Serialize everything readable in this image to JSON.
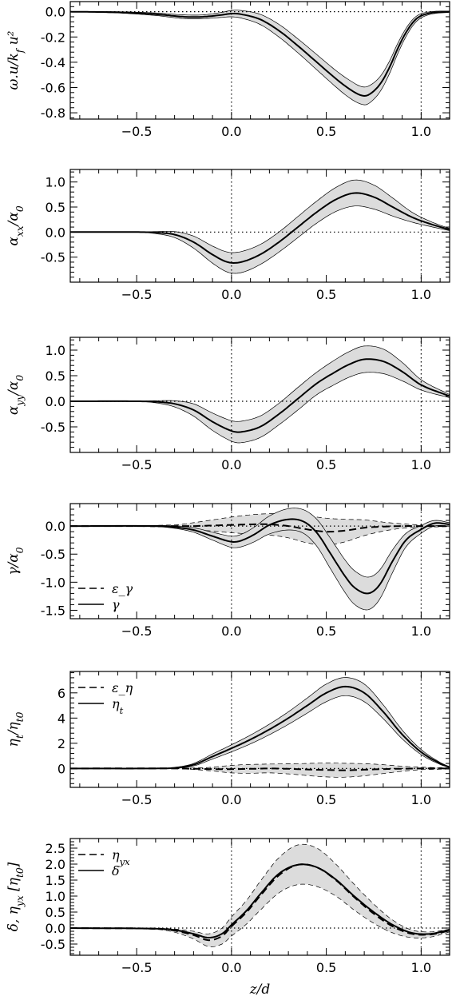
{
  "chart_data": [
    {
      "type": "line",
      "ylabel": "ω.u/k_f u²",
      "xlim": [
        -0.85,
        1.15
      ],
      "ylim": [
        -0.85,
        0.08
      ],
      "yticks": [
        0.0,
        -0.2,
        -0.4,
        -0.6,
        -0.8
      ],
      "ytick_labels": [
        "0.0",
        "-0.2",
        "-0.4",
        "-0.6",
        "-0.8"
      ],
      "xticks": [
        -0.5,
        0.0,
        0.5,
        1.0
      ],
      "xtick_labels": [
        "−0.5",
        "0.0",
        "0.5",
        "1.0"
      ],
      "hline": 0.0,
      "vlines": [
        0.0,
        1.0
      ],
      "legend": [],
      "series": [
        {
          "style": "solid",
          "x": [
            -0.85,
            -0.6,
            -0.4,
            -0.25,
            -0.15,
            -0.05,
            0.0,
            0.05,
            0.15,
            0.25,
            0.35,
            0.45,
            0.55,
            0.62,
            0.68,
            0.72,
            0.78,
            0.83,
            0.88,
            0.93,
            0.98,
            1.05,
            1.15
          ],
          "y": [
            0.0,
            -0.005,
            -0.02,
            -0.04,
            -0.04,
            -0.025,
            -0.015,
            -0.02,
            -0.06,
            -0.15,
            -0.27,
            -0.4,
            -0.53,
            -0.61,
            -0.66,
            -0.66,
            -0.58,
            -0.45,
            -0.28,
            -0.14,
            -0.05,
            -0.01,
            0.0
          ],
          "band": [
            0.0,
            0.005,
            0.01,
            0.015,
            0.015,
            0.02,
            0.025,
            0.03,
            0.04,
            0.05,
            0.055,
            0.06,
            0.065,
            0.07,
            0.07,
            0.07,
            0.06,
            0.05,
            0.04,
            0.03,
            0.02,
            0.01,
            0.005
          ]
        }
      ]
    },
    {
      "type": "line",
      "ylabel": "α_xx/α_0",
      "xlim": [
        -0.85,
        1.15
      ],
      "ylim": [
        -1.0,
        1.25
      ],
      "yticks": [
        1.0,
        0.5,
        0.0,
        -0.5
      ],
      "ytick_labels": [
        "1.0",
        "0.5",
        "0.0",
        "-0.5"
      ],
      "xticks": [
        -0.5,
        0.0,
        0.5,
        1.0
      ],
      "xtick_labels": [
        "−0.5",
        "0.0",
        "0.5",
        "1.0"
      ],
      "hline": 0.0,
      "vlines": [
        0.0,
        1.0
      ],
      "legend": [],
      "series": [
        {
          "style": "solid",
          "x": [
            -0.85,
            -0.5,
            -0.4,
            -0.3,
            -0.2,
            -0.1,
            -0.02,
            0.05,
            0.15,
            0.25,
            0.35,
            0.45,
            0.55,
            0.65,
            0.75,
            0.85,
            0.95,
            1.05,
            1.15
          ],
          "y": [
            0.0,
            0.0,
            -0.01,
            -0.05,
            -0.2,
            -0.45,
            -0.6,
            -0.6,
            -0.45,
            -0.2,
            0.1,
            0.4,
            0.65,
            0.78,
            0.7,
            0.5,
            0.3,
            0.16,
            0.05
          ],
          "band": [
            0.0,
            0.0,
            0.02,
            0.06,
            0.12,
            0.17,
            0.2,
            0.21,
            0.2,
            0.2,
            0.21,
            0.22,
            0.24,
            0.26,
            0.24,
            0.18,
            0.1,
            0.05,
            0.02
          ]
        }
      ]
    },
    {
      "type": "line",
      "ylabel": "α_yy/α_0",
      "xlim": [
        -0.85,
        1.15
      ],
      "ylim": [
        -1.0,
        1.25
      ],
      "yticks": [
        1.0,
        0.5,
        0.0,
        -0.5
      ],
      "ytick_labels": [
        "1.0",
        "0.5",
        "0.0",
        "-0.5"
      ],
      "xticks": [
        -0.5,
        0.0,
        0.5,
        1.0
      ],
      "xtick_labels": [
        "−0.5",
        "0.0",
        "0.5",
        "1.0"
      ],
      "hline": 0.0,
      "vlines": [
        0.0,
        1.0
      ],
      "legend": [],
      "series": [
        {
          "style": "solid",
          "x": [
            -0.85,
            -0.5,
            -0.4,
            -0.3,
            -0.2,
            -0.1,
            0.0,
            0.05,
            0.15,
            0.25,
            0.35,
            0.45,
            0.55,
            0.62,
            0.7,
            0.8,
            0.9,
            1.0,
            1.15
          ],
          "y": [
            0.0,
            0.0,
            -0.01,
            -0.05,
            -0.17,
            -0.4,
            -0.58,
            -0.6,
            -0.5,
            -0.25,
            0.05,
            0.35,
            0.58,
            0.72,
            0.82,
            0.78,
            0.58,
            0.32,
            0.1
          ],
          "band": [
            0.0,
            0.0,
            0.02,
            0.06,
            0.12,
            0.17,
            0.2,
            0.21,
            0.21,
            0.21,
            0.22,
            0.22,
            0.24,
            0.25,
            0.26,
            0.24,
            0.18,
            0.1,
            0.03
          ]
        }
      ]
    },
    {
      "type": "line",
      "ylabel": "γ/α_0",
      "xlim": [
        -0.85,
        1.15
      ],
      "ylim": [
        -1.65,
        0.4
      ],
      "yticks": [
        0.0,
        -0.5,
        -1.0,
        -1.5
      ],
      "ytick_labels": [
        "0.0",
        "-0.5",
        "-1.0",
        "-1.5"
      ],
      "xticks": [
        -0.5,
        0.0,
        0.5,
        1.0
      ],
      "xtick_labels": [
        "−0.5",
        "0.0",
        "0.5",
        "1.0"
      ],
      "hline": 0.0,
      "vlines": [
        0.0,
        1.0
      ],
      "legend": [
        "ε_γ",
        "γ"
      ],
      "series": [
        {
          "style": "dashed",
          "x": [
            -0.85,
            -0.3,
            -0.2,
            -0.1,
            0.0,
            0.1,
            0.2,
            0.3,
            0.4,
            0.5,
            0.6,
            0.7,
            0.8,
            0.9,
            1.0,
            1.15
          ],
          "y": [
            0.0,
            0.0,
            0.0,
            0.01,
            0.02,
            0.03,
            0.03,
            0.0,
            -0.06,
            -0.1,
            -0.08,
            -0.03,
            -0.01,
            0.0,
            0.0,
            0.0
          ],
          "band": [
            0.0,
            0.02,
            0.06,
            0.1,
            0.14,
            0.17,
            0.19,
            0.21,
            0.24,
            0.24,
            0.2,
            0.14,
            0.08,
            0.04,
            0.02,
            0.01
          ]
        },
        {
          "style": "solid",
          "x": [
            -0.85,
            -0.4,
            -0.3,
            -0.2,
            -0.1,
            0.0,
            0.05,
            0.12,
            0.2,
            0.3,
            0.38,
            0.45,
            0.52,
            0.6,
            0.65,
            0.72,
            0.78,
            0.85,
            0.92,
            1.0,
            1.07,
            1.15
          ],
          "y": [
            0.0,
            0.0,
            -0.02,
            -0.07,
            -0.18,
            -0.28,
            -0.26,
            -0.15,
            0.02,
            0.12,
            0.08,
            -0.12,
            -0.48,
            -0.9,
            -1.1,
            -1.2,
            -1.05,
            -0.62,
            -0.25,
            -0.06,
            0.05,
            0.03
          ],
          "band": [
            0.0,
            0.01,
            0.02,
            0.04,
            0.07,
            0.1,
            0.11,
            0.13,
            0.16,
            0.19,
            0.21,
            0.24,
            0.27,
            0.29,
            0.3,
            0.29,
            0.26,
            0.2,
            0.12,
            0.07,
            0.05,
            0.03
          ]
        }
      ]
    },
    {
      "type": "line",
      "ylabel": "η_t/η_t0",
      "xlim": [
        -0.85,
        1.15
      ],
      "ylim": [
        -1.5,
        7.7
      ],
      "yticks": [
        6,
        4,
        2,
        0
      ],
      "ytick_labels": [
        "6",
        "4",
        "2",
        "0"
      ],
      "xticks": [
        -0.5,
        0.0,
        0.5,
        1.0
      ],
      "xtick_labels": [
        "−0.5",
        "0.0",
        "0.5",
        "1.0"
      ],
      "hline": 0.0,
      "vlines": [
        0.0,
        1.0
      ],
      "legend": [
        "ε_η",
        "η_t"
      ],
      "series": [
        {
          "style": "dashed",
          "x": [
            -0.85,
            -0.3,
            -0.2,
            -0.1,
            0.0,
            0.1,
            0.2,
            0.3,
            0.4,
            0.5,
            0.6,
            0.7,
            0.8,
            0.9,
            1.0,
            1.15
          ],
          "y": [
            0.0,
            0.0,
            -0.02,
            -0.05,
            -0.05,
            -0.03,
            0.0,
            -0.03,
            -0.08,
            -0.12,
            -0.14,
            -0.1,
            -0.05,
            -0.02,
            0.0,
            0.0
          ],
          "band": [
            0.0,
            0.02,
            0.06,
            0.15,
            0.3,
            0.35,
            0.35,
            0.4,
            0.48,
            0.55,
            0.55,
            0.48,
            0.35,
            0.2,
            0.1,
            0.05
          ]
        },
        {
          "style": "solid",
          "x": [
            -0.85,
            -0.4,
            -0.3,
            -0.2,
            -0.1,
            0.0,
            0.1,
            0.2,
            0.3,
            0.4,
            0.5,
            0.6,
            0.7,
            0.8,
            0.9,
            1.0,
            1.1,
            1.15
          ],
          "y": [
            0.0,
            0.0,
            0.05,
            0.3,
            0.95,
            1.6,
            2.3,
            3.1,
            4.0,
            5.0,
            6.0,
            6.5,
            6.0,
            4.5,
            2.7,
            1.3,
            0.4,
            0.1
          ],
          "band": [
            0.0,
            0.0,
            0.03,
            0.1,
            0.2,
            0.28,
            0.35,
            0.42,
            0.5,
            0.6,
            0.7,
            0.72,
            0.7,
            0.55,
            0.35,
            0.2,
            0.08,
            0.03
          ]
        }
      ]
    },
    {
      "type": "line",
      "ylabel": "δ, η_yx [η_t0]",
      "xlim": [
        -0.85,
        1.15
      ],
      "ylim": [
        -0.85,
        2.8
      ],
      "yticks": [
        2.5,
        2.0,
        1.5,
        1.0,
        0.5,
        0.0,
        -0.5
      ],
      "ytick_labels": [
        "2.5",
        "2.0",
        "1.5",
        "1.0",
        "0.5",
        "0.0",
        "-0.5"
      ],
      "xticks": [
        -0.5,
        0.0,
        0.5,
        1.0
      ],
      "xtick_labels": [
        "−0.5",
        "0.0",
        "0.5",
        "1.0"
      ],
      "xlabel": "z/d",
      "hline": 0.0,
      "vlines": [
        0.0,
        1.0
      ],
      "legend": [
        "η_yx",
        "δ"
      ],
      "series": [
        {
          "style": "dashed",
          "x": [
            -0.85,
            -0.4,
            -0.3,
            -0.2,
            -0.12,
            -0.05,
            0.0,
            0.08,
            0.15,
            0.25,
            0.35,
            0.45,
            0.55,
            0.65,
            0.75,
            0.85,
            0.95,
            1.05,
            1.15
          ],
          "y": [
            0.0,
            -0.02,
            -0.08,
            -0.22,
            -0.38,
            -0.25,
            0.05,
            0.5,
            1.0,
            1.65,
            1.98,
            1.9,
            1.5,
            0.95,
            0.45,
            0.05,
            -0.18,
            -0.2,
            -0.08
          ],
          "band": [
            0.0,
            0.02,
            0.05,
            0.12,
            0.2,
            0.25,
            0.3,
            0.37,
            0.45,
            0.55,
            0.62,
            0.6,
            0.5,
            0.4,
            0.3,
            0.2,
            0.12,
            0.08,
            0.04
          ]
        },
        {
          "style": "solid",
          "x": [
            -0.85,
            -0.4,
            -0.3,
            -0.2,
            -0.12,
            -0.05,
            0.0,
            0.08,
            0.15,
            0.25,
            0.35,
            0.45,
            0.55,
            0.65,
            0.75,
            0.85,
            0.95,
            1.05,
            1.15
          ],
          "y": [
            0.0,
            -0.02,
            -0.06,
            -0.18,
            -0.3,
            -0.18,
            0.1,
            0.55,
            1.05,
            1.7,
            1.98,
            1.9,
            1.52,
            0.98,
            0.5,
            0.1,
            -0.15,
            -0.18,
            -0.05
          ],
          "band": []
        }
      ]
    }
  ]
}
